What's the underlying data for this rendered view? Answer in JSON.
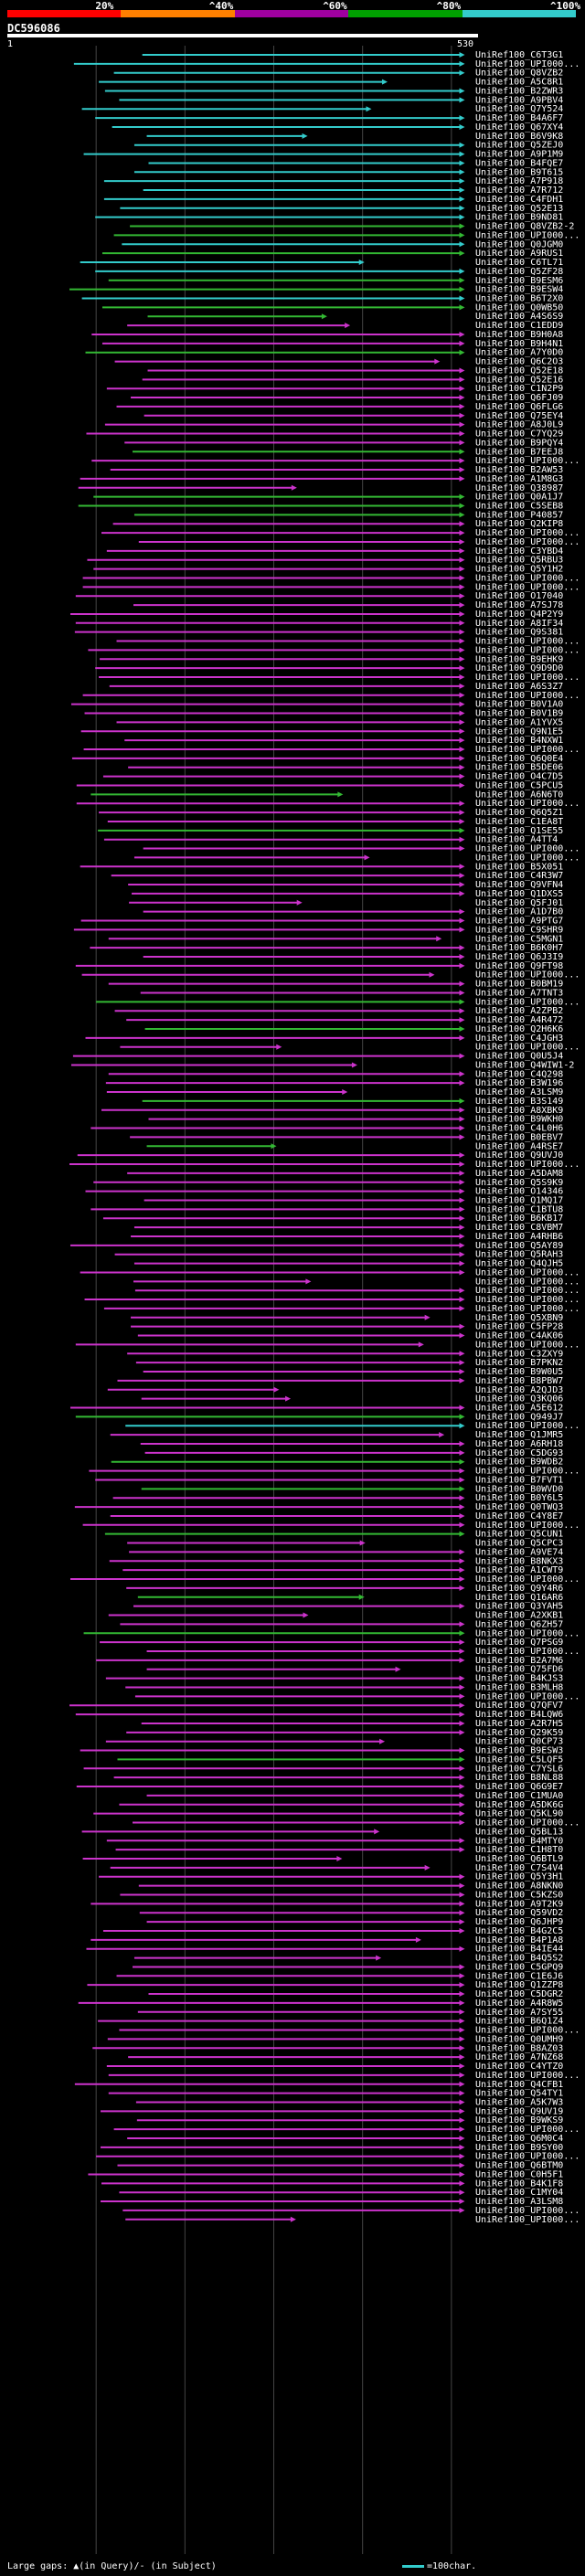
{
  "legend": {
    "labels": [
      "20%",
      "^40%",
      "^60%",
      "^80%",
      "^100%"
    ],
    "colors": [
      "#ff0000",
      "#ff8000",
      "#a000a0",
      "#00a000",
      "#33cccc"
    ]
  },
  "query": {
    "title": "DC596086",
    "start": "1",
    "end": "530"
  },
  "colors": {
    "magenta": "#cc33cc",
    "green": "#33b833",
    "cyan": "#33cccc",
    "gridline": "#444444",
    "background": "#000000"
  },
  "labels": [
    "UniRef100_C6T3G1",
    "UniRef100_UPI000...",
    "UniRef100_Q8VZB2",
    "UniRef100_A5C8R1",
    "UniRef100_B2ZWR3",
    "UniRef100_A9PBV4",
    "UniRef100_Q7Y524",
    "UniRef100_B4A6F7",
    "UniRef100_Q67XY4",
    "UniRef100_B6V9K8",
    "UniRef100_Q5ZEJ0",
    "UniRef100_A9P1M9",
    "UniRef100_B4FQE7",
    "UniRef100_B9T615",
    "UniRef100_A7P918",
    "UniRef100_A7R712",
    "UniRef100_C4FDH1",
    "UniRef100_Q52E13",
    "UniRef100_B9ND81",
    "UniRef100_Q8VZB2-2",
    "UniRef100_UPI000...",
    "UniRef100_Q0JGM0",
    "UniRef100_A9RUS1",
    "UniRef100_C6TL71",
    "UniRef100_Q5ZF28",
    "UniRef100_B9ESM6",
    "UniRef100_B9ESW4",
    "UniRef100_B6T2X0",
    "UniRef100_Q0WB50",
    "UniRef100_A4S6S9",
    "UniRef100_C1EDD9",
    "UniRef100_B9H0A8",
    "UniRef100_B9H4N1",
    "UniRef100_A7Y0D0",
    "UniRef100_Q6C2O3",
    "UniRef100_Q52E18",
    "UniRef100_Q52E16",
    "UniRef100_C1N2P9",
    "UniRef100_Q6FJ09",
    "UniRef100_Q6FLG6",
    "UniRef100_Q75EY4",
    "UniRef100_A8J0L9",
    "UniRef100_C7YQ29",
    "UniRef100_B9PQY4",
    "UniRef100_B7EEJ8",
    "UniRef100_UPI000...",
    "UniRef100_B2AW53",
    "UniRef100_A1M8G3",
    "UniRef100_Q38987",
    "UniRef100_Q0A1J7",
    "UniRef100_C5SEB8",
    "UniRef100_P40857",
    "UniRef100_Q2KIP8",
    "UniRef100_UPI000...",
    "UniRef100_UPI000...",
    "UniRef100_C3YBD4",
    "UniRef100_Q5RBU3",
    "UniRef100_Q5Y1H2",
    "UniRef100_UPI000...",
    "UniRef100_UPI000...",
    "UniRef100_O17040",
    "UniRef100_A7SJ78",
    "UniRef100_Q4P2Y9",
    "UniRef100_A8IF34",
    "UniRef100_Q9S381",
    "UniRef100_UPI000...",
    "UniRef100_UPI000...",
    "UniRef100_B9EHK9",
    "UniRef100_Q9D9D0",
    "UniRef100_UPI000...",
    "UniRef100_A6S3Z7",
    "UniRef100_UPI000...",
    "UniRef100_B0V1A0",
    "UniRef100_B0V1B9",
    "UniRef100_A1YVX5",
    "UniRef100_Q9N1E5",
    "UniRef100_B4NXW1",
    "UniRef100_UPI000...",
    "UniRef100_Q6Q0E4",
    "UniRef100_B5DE06",
    "UniRef100_O4C7D5",
    "UniRef100_C5PCU5",
    "UniRef100_A6N6T0",
    "UniRef100_UPI000...",
    "UniRef100_Q6Q5Z1",
    "UniRef100_C1EA8T",
    "UniRef100_Q1SE55",
    "UniRef100_A4TT4",
    "UniRef100_UPI000...",
    "UniRef100_UPI000...",
    "UniRef100_B5X051",
    "UniRef100_C4R3W7",
    "UniRef100_Q9VFN4",
    "UniRef100_Q1DXS5",
    "UniRef100_Q5FJ01",
    "UniRef100_A1D7B0",
    "UniRef100_A9PTG7",
    "UniRef100_C9SHR9",
    "UniRef100_C5MGN1",
    "UniRef100_B6K0H7",
    "UniRef100_Q6J3I9",
    "UniRef100_Q9FT98",
    "UniRef100_UPI000...",
    "UniRef100_B0BM19",
    "UniRef100_A7TNT3",
    "UniRef100_UPI000...",
    "UniRef100_A2ZPB2",
    "UniRef100_A4R472",
    "UniRef100_Q2H6K6",
    "UniRef100_C4JGH3",
    "UniRef100_UPI000...",
    "UniRef100_Q0U5J4",
    "UniRef100_Q4WIW1-2",
    "UniRef100_C4Q298",
    "UniRef100_B3W196",
    "UniRef100_A3LSM9",
    "UniRef100_B3S149",
    "UniRef100_A8XBK9",
    "UniRef100_B9WKH0",
    "UniRef100_C4L0H6",
    "UniRef100_B0EBV7",
    "UniRef100_A4RSE7",
    "UniRef100_Q9UVJ0",
    "UniRef100_UPI000...",
    "UniRef100_A5DAM8",
    "UniRef100_Q5S9K9",
    "UniRef100_O14346",
    "UniRef100_Q1MQ17",
    "UniRef100_C1BTU8",
    "UniRef100_B6KB17",
    "UniRef100_C8VBM7",
    "UniRef100_A4RHB6",
    "UniRef100_Q5AY89",
    "UniRef100_Q5RAH3",
    "UniRef100_Q4QJH5",
    "UniRef100_UPI000...",
    "UniRef100_UPI000...",
    "UniRef100_UPI000...",
    "UniRef100_UPI000...",
    "UniRef100_UPI000...",
    "UniRef100_Q5XBN9",
    "UniRef100_C5FP28",
    "UniRef100_C4AK06",
    "UniRef100_UPI000...",
    "UniRef100_C3ZXY9",
    "UniRef100_B7PKN2",
    "UniRef100_B9W0U5",
    "UniRef100_B8PBW7",
    "UniRef100_A2QJD3",
    "UniRef100_Q3KQ06",
    "UniRef100_A5E612",
    "UniRef100_Q949J7",
    "UniRef100_UPI000...",
    "UniRef100_Q1JMR5",
    "UniRef100_A6RH18",
    "UniRef100_C5DG93",
    "UniRef100_B9WDB2",
    "UniRef100_UPI000...",
    "UniRef100_B7FVT1",
    "UniRef100_B0WVD0",
    "UniRef100_B0Y6L5",
    "UniRef100_Q0TWQ3",
    "UniRef100_C4Y8E7",
    "UniRef100_UPI000...",
    "UniRef100_Q5CUN1",
    "UniRef100_Q5CPC3",
    "UniRef100_A9VE74",
    "UniRef100_B8NKX3",
    "UniRef100_A1CWT9",
    "UniRef100_UPI000...",
    "UniRef100_Q9Y4R6",
    "UniRef100_Q16AR6",
    "UniRef100_Q3YAH5",
    "UniRef100_A2XKB1",
    "UniRef100_Q6ZH57",
    "UniRef100_UPI000...",
    "UniRef100_Q7PSG9",
    "UniRef100_UPI000...",
    "UniRef100_B2A7M6",
    "UniRef100_Q75FD6",
    "UniRef100_B4KJS3",
    "UniRef100_B3MLH8",
    "UniRef100_UPI000...",
    "UniRef100_Q7QFV7",
    "UniRef100_B4LQW6",
    "UniRef100_A2R7H5",
    "UniRef100_Q29K59",
    "UniRef100_Q0CP73",
    "UniRef100_B9ESW3",
    "UniRef100_C5LQF5",
    "UniRef100_C7YSL6",
    "UniRef100_B8NL88",
    "UniRef100_Q6G9E7",
    "UniRef100_C1MUA0",
    "UniRef100_A5DK6G",
    "UniRef100_Q5KL90",
    "UniRef100_UPI000...",
    "UniRef100_Q5BL13",
    "UniRef100_B4MTY0",
    "UniRef100_C1H8T0",
    "UniRef100_Q6BTL9",
    "UniRef100_C7S4V4",
    "UniRef100_Q5Y3H1",
    "UniRef100_A8NKN0",
    "UniRef100_C5KZS0",
    "UniRef100_A9T2K9",
    "UniRef100_Q59VD2",
    "UniRef100_Q6JHP9",
    "UniRef100_B4G2C5",
    "UniRef100_B4P1A8",
    "UniRef100_B4IE44",
    "UniRef100_B4Q5S2",
    "UniRef100_C5GPQ9",
    "UniRef100_C1E6J6",
    "UniRef100_Q1ZZP8",
    "UniRef100_C5DGR2",
    "UniRef100_A4R8W5",
    "UniRef100_A7SY55",
    "UniRef100_B6Q1Z4",
    "UniRef100_UPI000...",
    "UniRef100_Q0UMH9",
    "UniRef100_B8AZ03",
    "UniRef100_A7NZ68",
    "UniRef100_C4YTZ0",
    "UniRef100_UPI000...",
    "UniRef100_Q4CFB1",
    "UniRef100_Q54TY1",
    "UniRef100_A5K7W3",
    "UniRef100_Q9UV19",
    "UniRef100_B9WKS9",
    "UniRef100_UPI000...",
    "UniRef100_Q6M0C4",
    "UniRef100_B9SY00",
    "UniRef100_UPI000...",
    "UniRef100_Q6BTM0",
    "UniRef100_C0H5F1",
    "UniRef100_B4K1F8",
    "UniRef100_C1MY04",
    "UniRef100_A3LSM8",
    "UniRef100_UPI000...",
    "UniRef100_UPI000..."
  ],
  "footer": {
    "gaps": "Large gaps: ▲(in Query)/- (in Subject)",
    "scale": "=100char."
  }
}
